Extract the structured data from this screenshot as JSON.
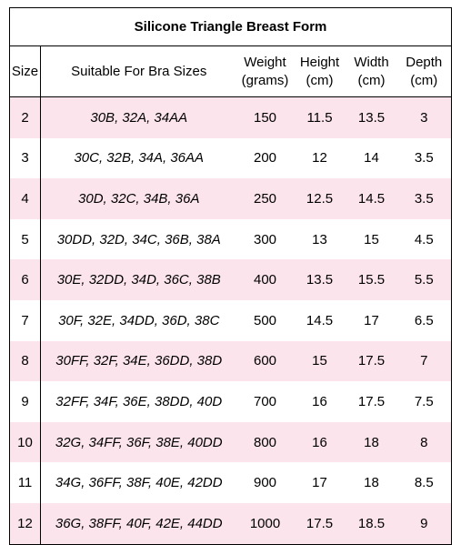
{
  "title": "Silicone Triangle Breast Form",
  "headers": {
    "size": "Size",
    "bra": "Suitable For Bra Sizes",
    "weight_1": "Weight",
    "weight_2": "(grams)",
    "height_1": "Height",
    "height_2": "(cm)",
    "width_1": "Width",
    "width_2": "(cm)",
    "depth_1": "Depth",
    "depth_2": "(cm)"
  },
  "rows": [
    {
      "size": "2",
      "bra": "30B, 32A, 34AA",
      "weight": "150",
      "height": "11.5",
      "width": "13.5",
      "depth": "3"
    },
    {
      "size": "3",
      "bra": "30C, 32B, 34A, 36AA",
      "weight": "200",
      "height": "12",
      "width": "14",
      "depth": "3.5"
    },
    {
      "size": "4",
      "bra": "30D, 32C, 34B, 36A",
      "weight": "250",
      "height": "12.5",
      "width": "14.5",
      "depth": "3.5"
    },
    {
      "size": "5",
      "bra": "30DD, 32D, 34C, 36B, 38A",
      "weight": "300",
      "height": "13",
      "width": "15",
      "depth": "4.5"
    },
    {
      "size": "6",
      "bra": "30E, 32DD, 34D, 36C, 38B",
      "weight": "400",
      "height": "13.5",
      "width": "15.5",
      "depth": "5.5"
    },
    {
      "size": "7",
      "bra": "30F, 32E, 34DD, 36D, 38C",
      "weight": "500",
      "height": "14.5",
      "width": "17",
      "depth": "6.5"
    },
    {
      "size": "8",
      "bra": "30FF, 32F, 34E, 36DD, 38D",
      "weight": "600",
      "height": "15",
      "width": "17.5",
      "depth": "7"
    },
    {
      "size": "9",
      "bra": "32FF, 34F, 36E, 38DD, 40D",
      "weight": "700",
      "height": "16",
      "width": "17.5",
      "depth": "7.5"
    },
    {
      "size": "10",
      "bra": "32G, 34FF, 36F, 38E, 40DD",
      "weight": "800",
      "height": "16",
      "width": "18",
      "depth": "8"
    },
    {
      "size": "11",
      "bra": "34G, 36FF, 38F, 40E, 42DD",
      "weight": "900",
      "height": "17",
      "width": "18",
      "depth": "8.5"
    },
    {
      "size": "12",
      "bra": "36G, 38FF, 40F, 42E, 44DD",
      "weight": "1000",
      "height": "17.5",
      "width": "18.5",
      "depth": "9"
    }
  ],
  "colors": {
    "stripe": "#fce4ec",
    "border": "#000000"
  }
}
